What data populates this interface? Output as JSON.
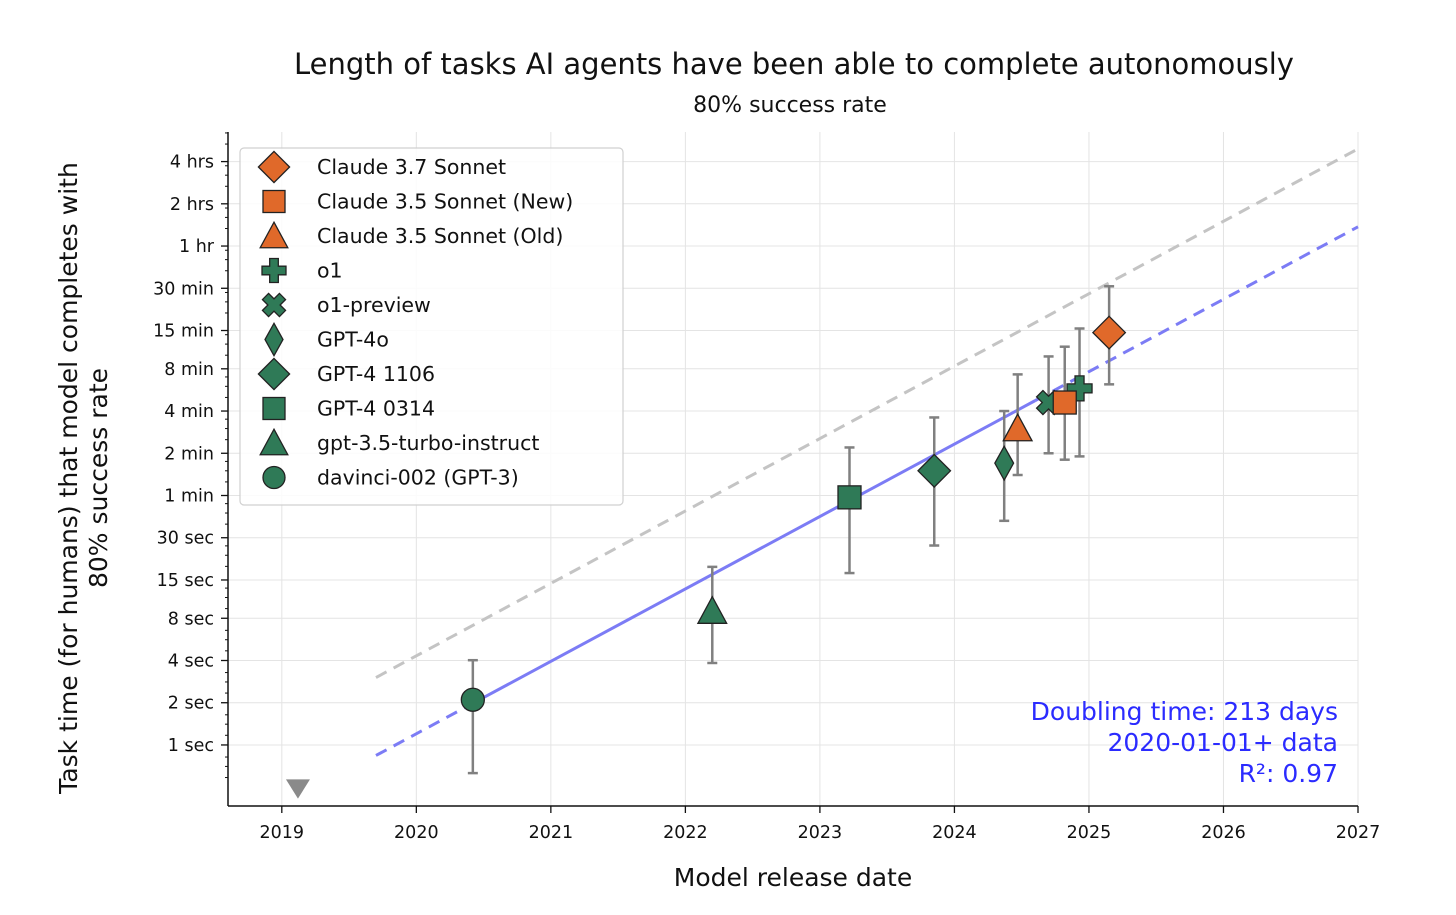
{
  "chart_data": {
    "type": "scatter",
    "title": "Length of tasks AI agents have been able to complete autonomously",
    "subtitle": "80% success rate",
    "xlabel": "Model release date",
    "ylabel_lines": [
      "Task time (for humans) that model completes with",
      "80% success rate"
    ],
    "y_scale": "log2",
    "y_unit": "minutes",
    "xlim": [
      2018.6,
      2027.0
    ],
    "ylim_minutes": [
      0.00612,
      390
    ],
    "x_ticks": [
      {
        "value": 2019,
        "label": "2019"
      },
      {
        "value": 2020,
        "label": "2020"
      },
      {
        "value": 2021,
        "label": "2021"
      },
      {
        "value": 2022,
        "label": "2022"
      },
      {
        "value": 2023,
        "label": "2023"
      },
      {
        "value": 2024,
        "label": "2024"
      },
      {
        "value": 2025,
        "label": "2025"
      },
      {
        "value": 2026,
        "label": "2026"
      },
      {
        "value": 2027,
        "label": "2027"
      }
    ],
    "y_ticks": [
      {
        "value": 0.016667,
        "label": "1 sec"
      },
      {
        "value": 0.033333,
        "label": "2 sec"
      },
      {
        "value": 0.066667,
        "label": "4 sec"
      },
      {
        "value": 0.133333,
        "label": "8 sec"
      },
      {
        "value": 0.25,
        "label": "15 sec"
      },
      {
        "value": 0.5,
        "label": "30 sec"
      },
      {
        "value": 1,
        "label": "1 min"
      },
      {
        "value": 2,
        "label": "2 min"
      },
      {
        "value": 4,
        "label": "4 min"
      },
      {
        "value": 8,
        "label": "8 min"
      },
      {
        "value": 15,
        "label": "15 min"
      },
      {
        "value": 30,
        "label": "30 min"
      },
      {
        "value": 60,
        "label": "1 hr"
      },
      {
        "value": 120,
        "label": "2 hrs"
      },
      {
        "value": 240,
        "label": "4 hrs"
      }
    ],
    "series": [
      {
        "name": "Claude 3.7 Sonnet",
        "marker": "diamond",
        "color": "#e0692a",
        "x": 2025.15,
        "y": 14.5,
        "err_low": 6.2,
        "err_high": 31
      },
      {
        "name": "Claude 3.5 Sonnet (New)",
        "marker": "square",
        "color": "#e0692a",
        "x": 2024.82,
        "y": 4.6,
        "err_low": 1.8,
        "err_high": 11.5
      },
      {
        "name": "Claude 3.5 Sonnet (Old)",
        "marker": "triangle",
        "color": "#e0692a",
        "x": 2024.47,
        "y": 3.0,
        "err_low": 1.4,
        "err_high": 7.3
      },
      {
        "name": "o1",
        "marker": "plus",
        "color": "#2f7a57",
        "x": 2024.93,
        "y": 5.8,
        "err_low": 1.9,
        "err_high": 15.5
      },
      {
        "name": "o1-preview",
        "marker": "x",
        "color": "#2f7a57",
        "x": 2024.7,
        "y": 4.6,
        "err_low": 2.0,
        "err_high": 9.8
      },
      {
        "name": "GPT-4o",
        "marker": "thin_diamond",
        "color": "#2f7a57",
        "x": 2024.37,
        "y": 1.7,
        "err_low": 0.66,
        "err_high": 4.0
      },
      {
        "name": "GPT-4 1106",
        "marker": "diamond",
        "color": "#2f7a57",
        "x": 2023.85,
        "y": 1.5,
        "err_low": 0.44,
        "err_high": 3.6
      },
      {
        "name": "GPT-4 0314",
        "marker": "square",
        "color": "#2f7a57",
        "x": 2023.22,
        "y": 0.97,
        "err_low": 0.28,
        "err_high": 2.2
      },
      {
        "name": "gpt-3.5-turbo-instruct",
        "marker": "triangle",
        "color": "#2f7a57",
        "x": 2022.2,
        "y": 0.15,
        "err_low": 0.064,
        "err_high": 0.31
      },
      {
        "name": "davinci-002 (GPT-3)",
        "marker": "circle",
        "color": "#2f7a57",
        "x": 2020.42,
        "y": 0.035,
        "err_low": 0.0105,
        "err_high": 0.067
      }
    ],
    "below_range_marker": {
      "marker": "down_triangle",
      "color": "#8a8a8a",
      "x": 2019.12
    },
    "trend_line": {
      "color": "#7c7cf5",
      "solid_from": 2020.42,
      "solid_to": 2024.6,
      "dashed_from": 2019.7,
      "dashed_to": 2027.0,
      "x0": 2020.42,
      "y0": 0.033,
      "doubling_days": 213
    },
    "upper_line": {
      "color": "#c4c4c4",
      "x_from": 2019.7,
      "x_to": 2027.0,
      "x0": 2020.0,
      "y0": 0.072,
      "doubling_days": 213
    },
    "annotation": {
      "lines": [
        "Doubling time: 213 days",
        "2020-01-01+ data",
        "R²: 0.97"
      ],
      "color": "#2b2bff",
      "placement": "bottom-right"
    },
    "legend_placement": "top-left",
    "grid": true
  }
}
